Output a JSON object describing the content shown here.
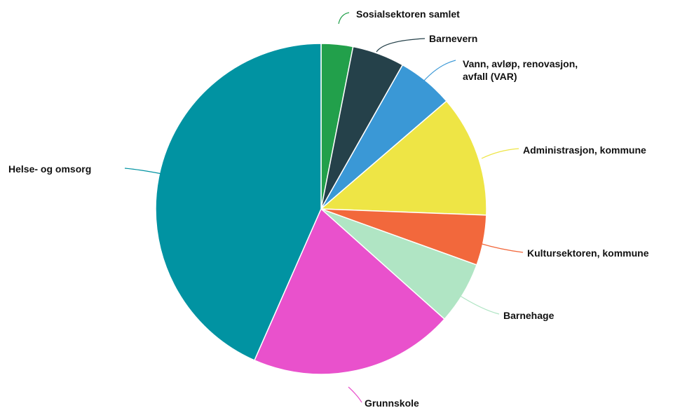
{
  "chart_data": {
    "type": "pie",
    "title": "",
    "start_angle_deg": 0,
    "direction": "clockwise",
    "slices": [
      {
        "label": "Sosialsektoren samlet",
        "value": 3.1,
        "color": "#22a04b"
      },
      {
        "label": "Barnevern",
        "value": 5.1,
        "color": "#25414a"
      },
      {
        "label": "Vann, avløp, renovasjon, avfall (VAR)",
        "value": 5.5,
        "color": "#3a98d6"
      },
      {
        "label": "Administrasjon, kommune",
        "value": 11.9,
        "color": "#eee545"
      },
      {
        "label": "Kultursektoren, kommune",
        "value": 4.9,
        "color": "#f2683c"
      },
      {
        "label": "Barnehage",
        "value": 6.1,
        "color": "#b0e5c4"
      },
      {
        "label": "Grunnskole",
        "value": 20.0,
        "color": "#e951cc"
      },
      {
        "label": "Helse- og omsorg",
        "value": 43.4,
        "color": "#0193a2"
      }
    ]
  }
}
